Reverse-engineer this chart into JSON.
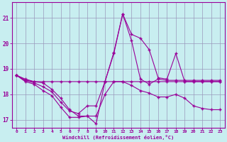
{
  "xlabel": "Windchill (Refroidissement éolien,°C)",
  "background_color": "#c8eef0",
  "line_color": "#990099",
  "grid_color": "#9999bb",
  "xlim": [
    -0.5,
    23.5
  ],
  "ylim": [
    16.7,
    21.6
  ],
  "yticks": [
    17,
    18,
    19,
    20,
    21
  ],
  "xticks": [
    0,
    1,
    2,
    3,
    4,
    5,
    6,
    7,
    8,
    9,
    10,
    11,
    12,
    13,
    14,
    15,
    16,
    17,
    18,
    19,
    20,
    21,
    22,
    23
  ],
  "line1_x": [
    0,
    1,
    2,
    3,
    4,
    5,
    6,
    7,
    8,
    9,
    10,
    11,
    12,
    13,
    14,
    15,
    16,
    17,
    18,
    19,
    20,
    21,
    22,
    23
  ],
  "line1_y": [
    18.75,
    18.6,
    18.5,
    18.5,
    18.5,
    18.5,
    18.5,
    18.5,
    18.5,
    18.5,
    18.5,
    18.5,
    18.5,
    18.5,
    18.5,
    18.5,
    18.5,
    18.5,
    18.5,
    18.5,
    18.5,
    18.5,
    18.5,
    18.5
  ],
  "line2_x": [
    0,
    1,
    2,
    3,
    4,
    5,
    6,
    7,
    8,
    9,
    10,
    11,
    12,
    13,
    14,
    15,
    16,
    17,
    18,
    19,
    20,
    21,
    22,
    23
  ],
  "line2_y": [
    18.75,
    18.55,
    18.5,
    18.45,
    18.2,
    17.85,
    17.4,
    17.15,
    17.15,
    16.85,
    18.5,
    19.6,
    21.15,
    20.1,
    18.6,
    18.4,
    18.6,
    18.55,
    18.55,
    18.55,
    18.55,
    18.55,
    18.55,
    18.55
  ],
  "line3_x": [
    0,
    1,
    2,
    3,
    4,
    5,
    6,
    7,
    8,
    9,
    10,
    11,
    12,
    13,
    14,
    15,
    16,
    17,
    18,
    19,
    20,
    21,
    22,
    23
  ],
  "line3_y": [
    18.75,
    18.55,
    18.45,
    18.3,
    18.1,
    17.7,
    17.35,
    17.25,
    17.55,
    17.55,
    18.5,
    19.65,
    21.15,
    20.35,
    20.2,
    19.75,
    18.65,
    18.6,
    19.6,
    18.5,
    18.5,
    18.5,
    18.5,
    18.5
  ],
  "line4_x": [
    0,
    1,
    2,
    3,
    4,
    5,
    6,
    7,
    8,
    9,
    10,
    11,
    12,
    13,
    14,
    15,
    16,
    17,
    18,
    19,
    20,
    21,
    22,
    23
  ],
  "line4_y": [
    18.75,
    18.5,
    18.4,
    18.15,
    17.95,
    17.5,
    17.1,
    17.1,
    17.15,
    17.15,
    18.0,
    18.5,
    18.5,
    18.35,
    18.15,
    18.05,
    17.9,
    17.9,
    18.0,
    17.85,
    17.55,
    17.45,
    17.4,
    17.4
  ]
}
